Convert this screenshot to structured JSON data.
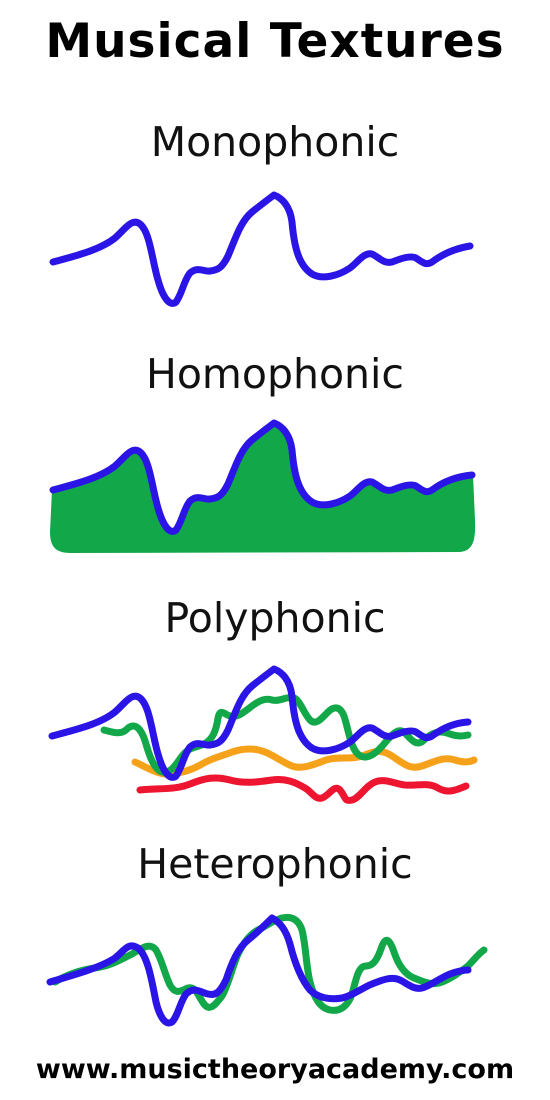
{
  "title": "Musical Textures",
  "sections": [
    {
      "label": "Monophonic"
    },
    {
      "label": "Homophonic"
    },
    {
      "label": "Polyphonic"
    },
    {
      "label": "Heterophonic"
    }
  ],
  "footer": "www.musictheoryacademy.com",
  "colors": {
    "melody": "#2a15e6",
    "accompaniment": "#12a84a",
    "voice_orange": "#f6a11a",
    "voice_red": "#ee1530",
    "text": "#000000"
  }
}
